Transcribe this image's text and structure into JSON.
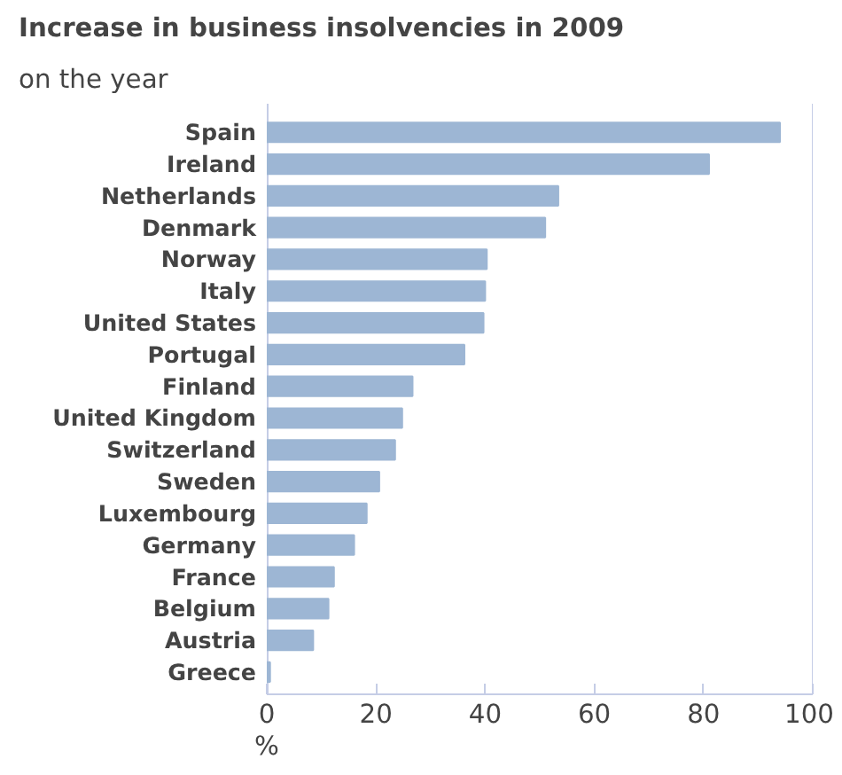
{
  "chart_data": {
    "type": "bar",
    "orientation": "horizontal",
    "title": "Increase in business insolvencies in 2009",
    "subtitle": "on the year",
    "xlabel": "%",
    "categories": [
      "Spain",
      "Ireland",
      "Netherlands",
      "Denmark",
      "Norway",
      "Italy",
      "United States",
      "Portugal",
      "Finland",
      "United Kingdom",
      "Switzerland",
      "Sweden",
      "Luxembourg",
      "Germany",
      "France",
      "Belgium",
      "Austria",
      "Greece"
    ],
    "values": [
      94,
      81,
      53.4,
      51,
      40.3,
      40,
      39.7,
      36.2,
      26.7,
      24.8,
      23.5,
      20.6,
      18.3,
      16,
      12.3,
      11.3,
      8.5,
      0.6
    ],
    "color": "#9db6d4",
    "xlim": [
      0,
      100
    ],
    "xticks": [
      0,
      20,
      40,
      60,
      80,
      100
    ],
    "grid": false
  }
}
